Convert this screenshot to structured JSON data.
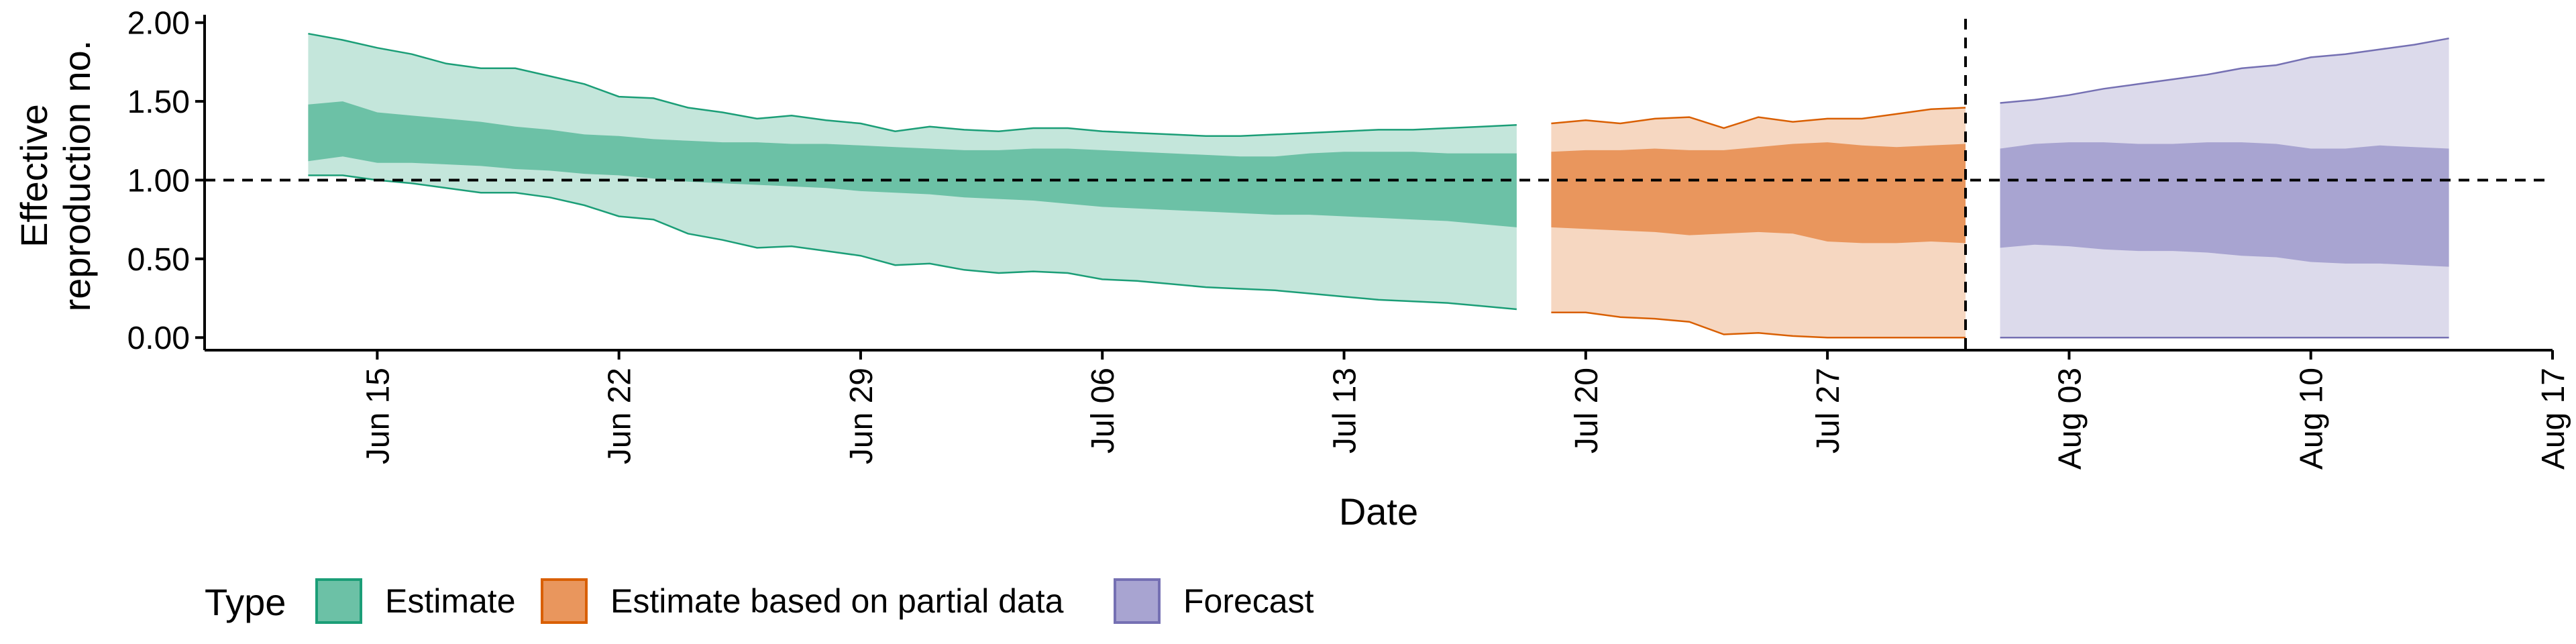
{
  "chart_data": {
    "type": "area",
    "ylabel": [
      "Effective",
      "reproduction no."
    ],
    "xlabel": "Date",
    "y_ticks": [
      "0.00",
      "0.50",
      "1.00",
      "1.50",
      "2.00"
    ],
    "y_tick_values": [
      0,
      0.5,
      1,
      1.5,
      2
    ],
    "ylim": [
      -0.08,
      2.05
    ],
    "x_ticks": [
      "Jun 15",
      "Jun 22",
      "Jun 29",
      "Jul 06",
      "Jul 13",
      "Jul 20",
      "Jul 27",
      "Aug 03",
      "Aug 10",
      "Aug 17"
    ],
    "x_tick_dates": [
      "2020-06-15",
      "2020-06-22",
      "2020-06-29",
      "2020-07-06",
      "2020-07-13",
      "2020-07-20",
      "2020-07-27",
      "2020-08-03",
      "2020-08-10",
      "2020-08-17"
    ],
    "xlim": [
      "2020-06-10",
      "2020-08-17"
    ],
    "reference_line_y": 1.0,
    "vertical_line_date": "2020-07-31",
    "legend": {
      "title": "Type",
      "position": "bottom-left",
      "entries": [
        "Estimate",
        "Estimate based on partial data",
        "Forecast"
      ]
    },
    "series": [
      {
        "name": "Estimate",
        "fill_dark": "#6cc1a6",
        "fill_light": "#c4e6db",
        "stroke": "#1b9e77",
        "x": [
          "2020-06-13",
          "2020-06-14",
          "2020-06-15",
          "2020-06-16",
          "2020-06-17",
          "2020-06-18",
          "2020-06-19",
          "2020-06-20",
          "2020-06-21",
          "2020-06-22",
          "2020-06-23",
          "2020-06-24",
          "2020-06-25",
          "2020-06-26",
          "2020-06-27",
          "2020-06-28",
          "2020-06-29",
          "2020-06-30",
          "2020-07-01",
          "2020-07-02",
          "2020-07-03",
          "2020-07-04",
          "2020-07-05",
          "2020-07-06",
          "2020-07-07",
          "2020-07-08",
          "2020-07-09",
          "2020-07-10",
          "2020-07-11",
          "2020-07-12",
          "2020-07-13",
          "2020-07-14",
          "2020-07-15",
          "2020-07-16",
          "2020-07-17",
          "2020-07-18"
        ],
        "lower90": [
          1.03,
          1.03,
          1.0,
          0.98,
          0.95,
          0.92,
          0.92,
          0.89,
          0.84,
          0.77,
          0.75,
          0.66,
          0.62,
          0.57,
          0.58,
          0.55,
          0.52,
          0.46,
          0.47,
          0.43,
          0.41,
          0.42,
          0.41,
          0.37,
          0.36,
          0.34,
          0.32,
          0.31,
          0.3,
          0.28,
          0.26,
          0.24,
          0.23,
          0.22,
          0.2,
          0.18
        ],
        "upper90": [
          1.93,
          1.89,
          1.84,
          1.8,
          1.74,
          1.71,
          1.71,
          1.66,
          1.61,
          1.53,
          1.52,
          1.46,
          1.43,
          1.39,
          1.41,
          1.38,
          1.36,
          1.31,
          1.34,
          1.32,
          1.31,
          1.33,
          1.33,
          1.31,
          1.3,
          1.29,
          1.28,
          1.28,
          1.29,
          1.3,
          1.31,
          1.32,
          1.32,
          1.33,
          1.34,
          1.35
        ],
        "lower50": [
          1.12,
          1.15,
          1.11,
          1.11,
          1.1,
          1.09,
          1.07,
          1.06,
          1.04,
          1.03,
          1.01,
          0.99,
          0.98,
          0.97,
          0.96,
          0.95,
          0.93,
          0.92,
          0.91,
          0.89,
          0.88,
          0.87,
          0.85,
          0.83,
          0.82,
          0.81,
          0.8,
          0.79,
          0.78,
          0.78,
          0.77,
          0.76,
          0.75,
          0.74,
          0.72,
          0.7
        ],
        "upper50": [
          1.48,
          1.5,
          1.43,
          1.41,
          1.39,
          1.37,
          1.34,
          1.32,
          1.29,
          1.28,
          1.26,
          1.25,
          1.24,
          1.24,
          1.23,
          1.23,
          1.22,
          1.21,
          1.2,
          1.19,
          1.19,
          1.2,
          1.2,
          1.19,
          1.18,
          1.17,
          1.16,
          1.15,
          1.15,
          1.17,
          1.18,
          1.18,
          1.18,
          1.17,
          1.17,
          1.17
        ]
      },
      {
        "name": "Estimate based on partial data",
        "fill_dark": "#e9965d",
        "fill_light": "#f6d7c1",
        "stroke": "#d95f02",
        "x": [
          "2020-07-19",
          "2020-07-20",
          "2020-07-21",
          "2020-07-22",
          "2020-07-23",
          "2020-07-24",
          "2020-07-25",
          "2020-07-26",
          "2020-07-27",
          "2020-07-28",
          "2020-07-29",
          "2020-07-30",
          "2020-07-31"
        ],
        "lower90": [
          0.16,
          0.16,
          0.13,
          0.12,
          0.1,
          0.02,
          0.03,
          0.01,
          0.0,
          0.0,
          0.0,
          0.0,
          0.0
        ],
        "upper90": [
          1.36,
          1.38,
          1.36,
          1.39,
          1.4,
          1.33,
          1.4,
          1.37,
          1.39,
          1.39,
          1.42,
          1.45,
          1.46
        ],
        "lower50": [
          0.7,
          0.69,
          0.68,
          0.67,
          0.65,
          0.66,
          0.67,
          0.66,
          0.61,
          0.6,
          0.6,
          0.61,
          0.6
        ],
        "upper50": [
          1.18,
          1.19,
          1.19,
          1.2,
          1.19,
          1.19,
          1.21,
          1.23,
          1.24,
          1.22,
          1.21,
          1.22,
          1.23
        ]
      },
      {
        "name": "Forecast",
        "fill_dark": "#a8a4d1",
        "fill_light": "#dcdaeb",
        "stroke": "#7570b3",
        "x": [
          "2020-08-01",
          "2020-08-02",
          "2020-08-03",
          "2020-08-04",
          "2020-08-05",
          "2020-08-06",
          "2020-08-07",
          "2020-08-08",
          "2020-08-09",
          "2020-08-10",
          "2020-08-11",
          "2020-08-12",
          "2020-08-13",
          "2020-08-14"
        ],
        "lower90": [
          0,
          0,
          0,
          0,
          0,
          0,
          0,
          0,
          0,
          0,
          0,
          0,
          0,
          0
        ],
        "upper90": [
          1.49,
          1.51,
          1.54,
          1.58,
          1.61,
          1.64,
          1.67,
          1.71,
          1.73,
          1.78,
          1.8,
          1.83,
          1.86,
          1.9
        ],
        "lower50": [
          0.57,
          0.59,
          0.58,
          0.56,
          0.55,
          0.55,
          0.54,
          0.52,
          0.51,
          0.48,
          0.47,
          0.47,
          0.46,
          0.45
        ],
        "upper50": [
          1.2,
          1.23,
          1.24,
          1.24,
          1.23,
          1.23,
          1.24,
          1.24,
          1.23,
          1.2,
          1.2,
          1.22,
          1.21,
          1.2
        ]
      }
    ]
  }
}
